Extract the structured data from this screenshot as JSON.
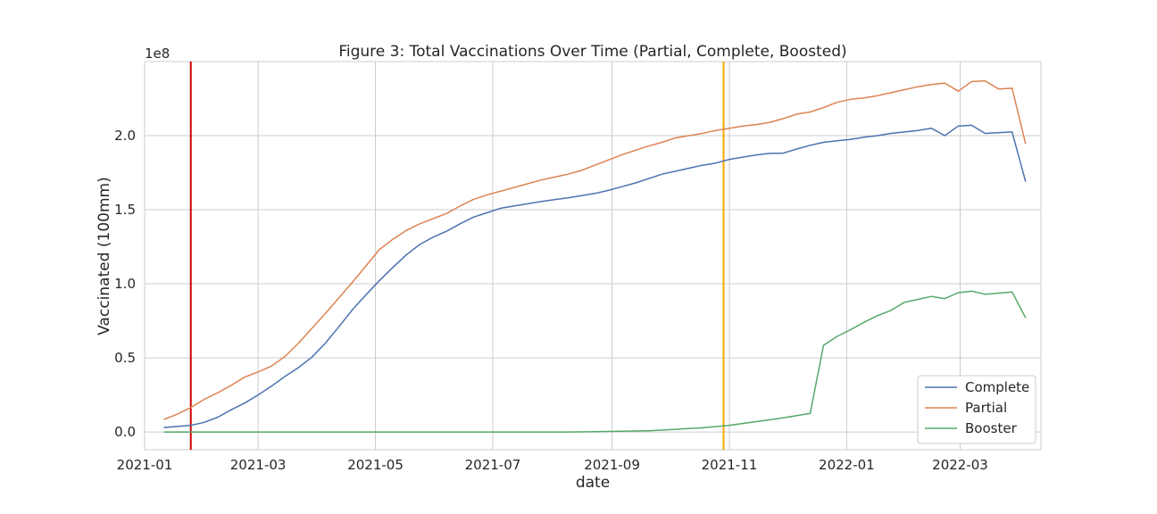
{
  "chart_data": {
    "type": "line",
    "title": "Figure 3: Total Vaccinations Over Time (Partial, Complete, Boosted)",
    "xlabel": "date",
    "ylabel": "Vaccinated (100mm)",
    "y_offset_label": "1e8",
    "x_ticks": [
      "2021-01",
      "2021-03",
      "2021-05",
      "2021-07",
      "2021-09",
      "2021-11",
      "2022-01",
      "2022-03"
    ],
    "y_ticks": [
      "0.0",
      "0.5",
      "1.0",
      "1.5",
      "2.0"
    ],
    "ylim": [
      -0.12,
      2.5
    ],
    "xlim": [
      "2021-01-01",
      "2022-04-12"
    ],
    "grid": true,
    "legend_position": "lower-right",
    "vlines": [
      {
        "x": "2021-01-25",
        "color": "#cc0000"
      },
      {
        "x": "2021-10-29",
        "color": "#f5a700"
      }
    ],
    "series": [
      {
        "name": "Complete",
        "color": "#4c72b0",
        "points": [
          [
            "2021-01-11",
            0.03
          ],
          [
            "2021-01-25",
            0.045
          ],
          [
            "2021-02-01",
            0.065
          ],
          [
            "2021-02-08",
            0.1
          ],
          [
            "2021-02-15",
            0.15
          ],
          [
            "2021-02-22",
            0.195
          ],
          [
            "2021-03-01",
            0.25
          ],
          [
            "2021-03-08",
            0.31
          ],
          [
            "2021-03-15",
            0.375
          ],
          [
            "2021-03-22",
            0.435
          ],
          [
            "2021-03-29",
            0.505
          ],
          [
            "2021-04-05",
            0.6
          ],
          [
            "2021-04-12",
            0.71
          ],
          [
            "2021-04-19",
            0.825
          ],
          [
            "2021-04-26",
            0.925
          ],
          [
            "2021-05-03",
            1.02
          ],
          [
            "2021-05-10",
            1.11
          ],
          [
            "2021-05-17",
            1.195
          ],
          [
            "2021-05-24",
            1.265
          ],
          [
            "2021-05-31",
            1.315
          ],
          [
            "2021-06-07",
            1.355
          ],
          [
            "2021-06-14",
            1.405
          ],
          [
            "2021-06-21",
            1.45
          ],
          [
            "2021-06-28",
            1.48
          ],
          [
            "2021-07-05",
            1.51
          ],
          [
            "2021-07-12",
            1.525
          ],
          [
            "2021-07-19",
            1.54
          ],
          [
            "2021-07-26",
            1.555
          ],
          [
            "2021-08-02",
            1.568
          ],
          [
            "2021-08-09",
            1.58
          ],
          [
            "2021-08-16",
            1.595
          ],
          [
            "2021-08-23",
            1.61
          ],
          [
            "2021-08-30",
            1.63
          ],
          [
            "2021-09-06",
            1.655
          ],
          [
            "2021-09-13",
            1.68
          ],
          [
            "2021-09-20",
            1.71
          ],
          [
            "2021-09-27",
            1.74
          ],
          [
            "2021-10-04",
            1.76
          ],
          [
            "2021-10-11",
            1.78
          ],
          [
            "2021-10-18",
            1.8
          ],
          [
            "2021-10-25",
            1.815
          ],
          [
            "2021-11-01",
            1.84
          ],
          [
            "2021-11-08",
            1.855
          ],
          [
            "2021-11-15",
            1.87
          ],
          [
            "2021-11-22",
            1.88
          ],
          [
            "2021-11-29",
            1.882
          ],
          [
            "2021-12-06",
            1.91
          ],
          [
            "2021-12-13",
            1.935
          ],
          [
            "2021-12-20",
            1.955
          ],
          [
            "2021-12-27",
            1.965
          ],
          [
            "2022-01-03",
            1.975
          ],
          [
            "2022-01-10",
            1.99
          ],
          [
            "2022-01-17",
            2.0
          ],
          [
            "2022-01-24",
            2.015
          ],
          [
            "2022-01-31",
            2.025
          ],
          [
            "2022-02-07",
            2.035
          ],
          [
            "2022-02-14",
            2.05
          ],
          [
            "2022-02-21",
            2.0
          ],
          [
            "2022-02-28",
            2.065
          ],
          [
            "2022-03-07",
            2.07
          ],
          [
            "2022-03-14",
            2.015
          ],
          [
            "2022-03-28",
            2.025
          ],
          [
            "2022-04-04",
            1.69
          ]
        ]
      },
      {
        "name": "Partial",
        "color": "#dd8452",
        "points": [
          [
            "2021-01-11",
            0.085
          ],
          [
            "2021-01-18",
            0.12
          ],
          [
            "2021-01-25",
            0.165
          ],
          [
            "2021-02-01",
            0.22
          ],
          [
            "2021-02-08",
            0.265
          ],
          [
            "2021-02-15",
            0.315
          ],
          [
            "2021-02-22",
            0.37
          ],
          [
            "2021-03-01",
            0.405
          ],
          [
            "2021-03-08",
            0.445
          ],
          [
            "2021-03-15",
            0.51
          ],
          [
            "2021-03-22",
            0.6
          ],
          [
            "2021-03-29",
            0.7
          ],
          [
            "2021-04-05",
            0.8
          ],
          [
            "2021-04-12",
            0.905
          ],
          [
            "2021-04-19",
            1.01
          ],
          [
            "2021-04-26",
            1.12
          ],
          [
            "2021-05-03",
            1.23
          ],
          [
            "2021-05-10",
            1.3
          ],
          [
            "2021-05-17",
            1.36
          ],
          [
            "2021-05-24",
            1.405
          ],
          [
            "2021-05-31",
            1.44
          ],
          [
            "2021-06-07",
            1.475
          ],
          [
            "2021-06-14",
            1.525
          ],
          [
            "2021-06-21",
            1.57
          ],
          [
            "2021-06-28",
            1.6
          ],
          [
            "2021-07-05",
            1.625
          ],
          [
            "2021-07-12",
            1.65
          ],
          [
            "2021-07-19",
            1.675
          ],
          [
            "2021-07-26",
            1.7
          ],
          [
            "2021-08-02",
            1.72
          ],
          [
            "2021-08-09",
            1.74
          ],
          [
            "2021-08-16",
            1.765
          ],
          [
            "2021-08-23",
            1.8
          ],
          [
            "2021-08-30",
            1.835
          ],
          [
            "2021-09-06",
            1.87
          ],
          [
            "2021-09-13",
            1.9
          ],
          [
            "2021-09-20",
            1.93
          ],
          [
            "2021-09-27",
            1.955
          ],
          [
            "2021-10-04",
            1.985
          ],
          [
            "2021-10-11",
            2.0
          ],
          [
            "2021-10-18",
            2.015
          ],
          [
            "2021-10-25",
            2.035
          ],
          [
            "2021-11-01",
            2.05
          ],
          [
            "2021-11-08",
            2.065
          ],
          [
            "2021-11-15",
            2.075
          ],
          [
            "2021-11-22",
            2.09
          ],
          [
            "2021-11-29",
            2.115
          ],
          [
            "2021-12-06",
            2.145
          ],
          [
            "2021-12-13",
            2.16
          ],
          [
            "2021-12-20",
            2.19
          ],
          [
            "2021-12-27",
            2.225
          ],
          [
            "2022-01-03",
            2.245
          ],
          [
            "2022-01-10",
            2.255
          ],
          [
            "2022-01-17",
            2.27
          ],
          [
            "2022-01-24",
            2.29
          ],
          [
            "2022-01-31",
            2.31
          ],
          [
            "2022-02-07",
            2.33
          ],
          [
            "2022-02-14",
            2.345
          ],
          [
            "2022-02-21",
            2.355
          ],
          [
            "2022-02-28",
            2.3
          ],
          [
            "2022-03-07",
            2.365
          ],
          [
            "2022-03-14",
            2.37
          ],
          [
            "2022-03-21",
            2.315
          ],
          [
            "2022-03-28",
            2.32
          ],
          [
            "2022-04-04",
            1.945
          ]
        ]
      },
      {
        "name": "Booster",
        "color": "#55a868",
        "points": [
          [
            "2021-01-11",
            0.0
          ],
          [
            "2021-08-09",
            0.0
          ],
          [
            "2021-08-23",
            0.002
          ],
          [
            "2021-09-06",
            0.005
          ],
          [
            "2021-09-20",
            0.008
          ],
          [
            "2021-10-04",
            0.018
          ],
          [
            "2021-10-18",
            0.028
          ],
          [
            "2021-11-01",
            0.045
          ],
          [
            "2021-11-15",
            0.07
          ],
          [
            "2021-11-29",
            0.095
          ],
          [
            "2021-12-06",
            0.11
          ],
          [
            "2021-12-13",
            0.125
          ],
          [
            "2021-12-20",
            0.585
          ],
          [
            "2021-12-27",
            0.645
          ],
          [
            "2022-01-03",
            0.69
          ],
          [
            "2022-01-10",
            0.74
          ],
          [
            "2022-01-17",
            0.785
          ],
          [
            "2022-01-24",
            0.82
          ],
          [
            "2022-01-31",
            0.875
          ],
          [
            "2022-02-07",
            0.895
          ],
          [
            "2022-02-14",
            0.915
          ],
          [
            "2022-02-21",
            0.9
          ],
          [
            "2022-02-28",
            0.94
          ],
          [
            "2022-03-07",
            0.95
          ],
          [
            "2022-03-14",
            0.93
          ],
          [
            "2022-03-28",
            0.945
          ],
          [
            "2022-04-04",
            0.77
          ]
        ]
      }
    ]
  }
}
